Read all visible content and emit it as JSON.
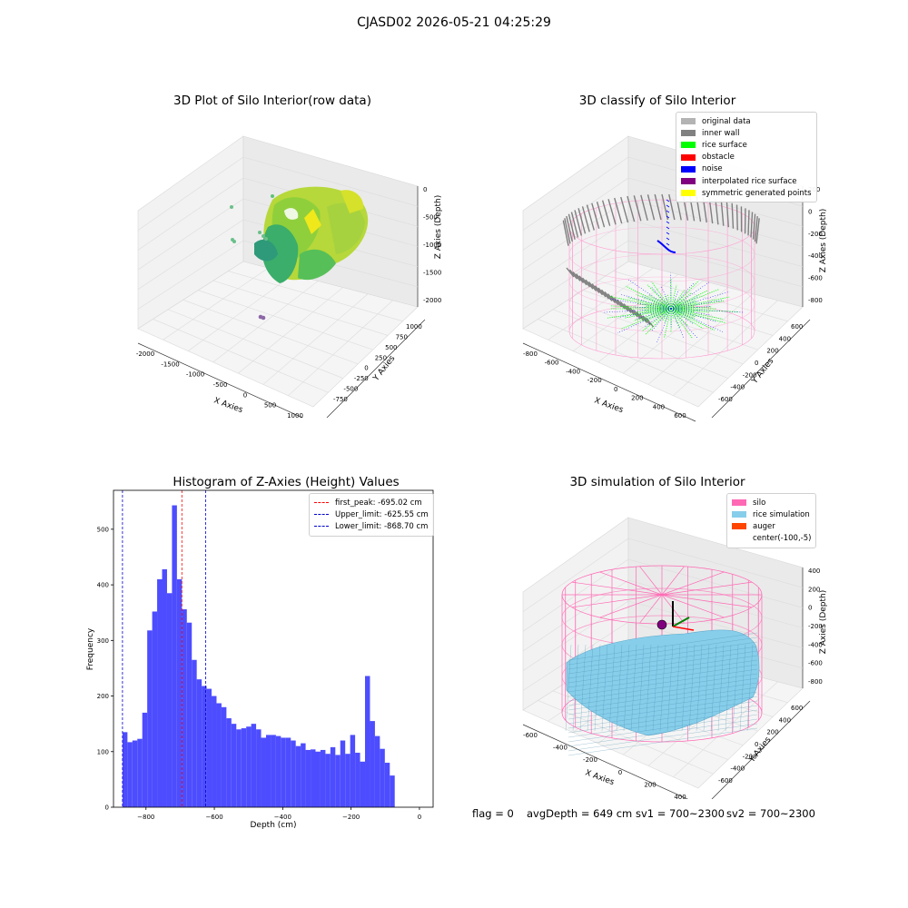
{
  "suptitle": "CJASD02 2026-05-21 04:25:29",
  "footer": {
    "flag": "flag = 0",
    "avg_depth": "avgDepth = 649 cm",
    "sv1": "sv1 = 700~2300",
    "sv2": "sv2 = 700~2300"
  },
  "colors": {
    "histogram_bar": "#4d4dff",
    "first_peak_line": "#ff0000",
    "limit_lines": "#0000cc",
    "silo": "#ff69b4",
    "rice_simulation": "#87ceeb",
    "auger": "#ff4500"
  },
  "chart_data": [
    {
      "type": "scatter",
      "projection": "3d",
      "title": "3D Plot of Silo Interior(row data)",
      "xlabel": "X Axies",
      "ylabel": "Y Axies",
      "zlabel": "Z Axies (Depth)",
      "x_ticks": [
        "-2000",
        "-1500",
        "-1000",
        "-500",
        "0",
        "500",
        "1000"
      ],
      "y_ticks": [
        "-750",
        "-500",
        "-250",
        "0",
        "250",
        "500",
        "750",
        "1000"
      ],
      "z_ticks": [
        "0",
        "-500",
        "-1000",
        "-1500",
        "-2000"
      ],
      "grid": true
    },
    {
      "type": "scatter",
      "projection": "3d",
      "title": "3D classify of Silo Interior",
      "xlabel": "X Axies",
      "ylabel": "Y Axies",
      "zlabel": "Z Axies (Depth)",
      "x_ticks": [
        "-800",
        "-600",
        "-400",
        "-200",
        "0",
        "200",
        "400",
        "600"
      ],
      "y_ticks": [
        "-600",
        "-400",
        "-200",
        "0",
        "200",
        "400",
        "600"
      ],
      "z_ticks": [
        "200",
        "0",
        "-200",
        "-400",
        "-600",
        "-800"
      ],
      "legend_position": "top-right",
      "legend": [
        {
          "label": "original data",
          "color": "#b3b3b3"
        },
        {
          "label": "inner wall",
          "color": "#808080"
        },
        {
          "label": "rice surface",
          "color": "#00ff00"
        },
        {
          "label": "obstacle",
          "color": "#ff0000"
        },
        {
          "label": "noise",
          "color": "#0000ff"
        },
        {
          "label": "interpolated rice surface",
          "color": "#800080"
        },
        {
          "label": "symmetric generated points",
          "color": "#ffff00"
        }
      ],
      "grid": true
    },
    {
      "type": "bar",
      "title": "Histogram of Z-Axies (Height) Values",
      "xlabel": "Depth (cm)",
      "ylabel": "Frequency",
      "xlim": [
        -895,
        40
      ],
      "ylim": [
        0,
        570
      ],
      "x_ticks": [
        -800,
        -600,
        -400,
        -200,
        0
      ],
      "x_tick_labels": [
        "−800",
        "−600",
        "−400",
        "−200",
        "0"
      ],
      "y_ticks": [
        0,
        100,
        200,
        300,
        400,
        500
      ],
      "bin_start": -868.7,
      "bin_width": 14.48,
      "values": [
        135,
        117,
        120,
        123,
        170,
        318,
        352,
        410,
        428,
        385,
        543,
        410,
        356,
        332,
        265,
        230,
        218,
        213,
        200,
        187,
        180,
        160,
        150,
        140,
        142,
        145,
        150,
        140,
        125,
        130,
        130,
        128,
        125,
        125,
        120,
        110,
        115,
        103,
        104,
        100,
        103,
        96,
        108,
        94,
        120,
        96,
        130,
        98,
        82,
        236,
        155,
        128,
        105,
        80,
        57
      ],
      "vlines": [
        {
          "label": "first_peak: -695.02 cm",
          "x": -695.02,
          "color": "#ff0000"
        },
        {
          "label": "Upper_limit: -625.55 cm",
          "x": -625.55,
          "color": "#0000cc"
        },
        {
          "label": "Lower_limit: -868.70 cm",
          "x": -868.7,
          "color": "#0000cc"
        }
      ],
      "legend_position": "top-right"
    },
    {
      "type": "surface",
      "projection": "3d",
      "title": "3D simulation of Silo Interior",
      "xlabel": "X Axies",
      "ylabel": "Y Axies",
      "zlabel": "Z Axies (Depth)",
      "x_ticks": [
        "-600",
        "-400",
        "-200",
        "0",
        "200",
        "400"
      ],
      "y_ticks": [
        "-600",
        "-400",
        "-200",
        "0",
        "200",
        "400",
        "600"
      ],
      "z_ticks": [
        "400",
        "200",
        "0",
        "-200",
        "-400",
        "-600",
        "-800"
      ],
      "legend_position": "top-right",
      "legend": [
        {
          "label": "silo",
          "color": "#ff69b4"
        },
        {
          "label": "rice simulation",
          "color": "#87ceeb"
        },
        {
          "label": "auger",
          "color": "#ff4500"
        },
        {
          "label": "center(-100,-5)",
          "color": "none"
        }
      ],
      "grid": true
    }
  ]
}
